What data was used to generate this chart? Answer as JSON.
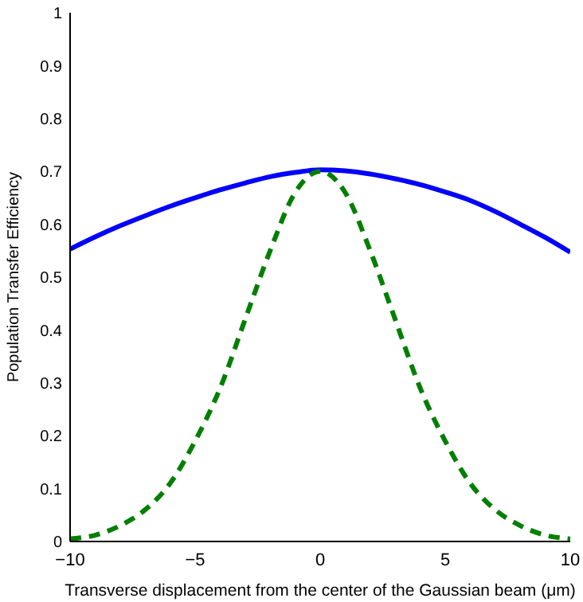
{
  "chart_data": {
    "type": "line",
    "xlabel": "Transverse displacement from the center of the Gaussian beam (μm)",
    "ylabel": "Population Transfer Efficiency",
    "x": [
      -10,
      -9,
      -8,
      -7,
      -6,
      -5,
      -4,
      -3,
      -2,
      -1,
      0,
      1,
      2,
      3,
      4,
      5,
      6,
      7,
      8,
      9,
      10
    ],
    "series": [
      {
        "color": "#0000ff",
        "line_style": "solid",
        "values": [
          0.553,
          0.576,
          0.597,
          0.616,
          0.634,
          0.65,
          0.665,
          0.678,
          0.69,
          0.698,
          0.703,
          0.701,
          0.695,
          0.686,
          0.675,
          0.661,
          0.645,
          0.624,
          0.6,
          0.575,
          0.547
        ]
      },
      {
        "color": "#007f00",
        "line_style": "dashed",
        "values": [
          0.005,
          0.012,
          0.03,
          0.06,
          0.11,
          0.19,
          0.29,
          0.42,
          0.55,
          0.66,
          0.7,
          0.66,
          0.55,
          0.42,
          0.29,
          0.19,
          0.11,
          0.06,
          0.03,
          0.012,
          0.005
        ]
      }
    ],
    "xlim": [
      -10,
      10
    ],
    "ylim": [
      0,
      1
    ],
    "xticks": [
      {
        "value": -10,
        "label": "−10"
      },
      {
        "value": -5,
        "label": "−5"
      },
      0,
      5,
      10
    ],
    "yticks": [
      0,
      0.1,
      0.2,
      0.3,
      0.4,
      0.5,
      0.6,
      0.7,
      0.8,
      0.9,
      1
    ],
    "grid": false,
    "marker": "none"
  }
}
